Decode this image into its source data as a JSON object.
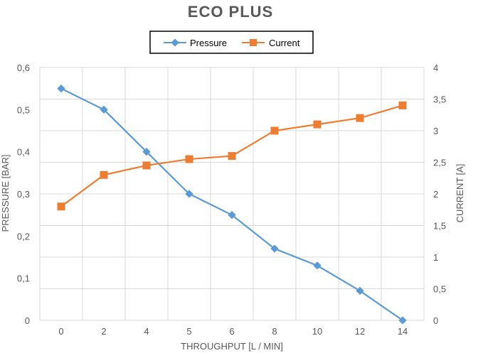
{
  "chart_data": {
    "type": "line",
    "title": "ECO PLUS",
    "xlabel": "THROUGHPUT [L / MIN]",
    "ylabel_left": "PRESSURE [BAR]",
    "ylabel_right": "CURRENT [A]",
    "categories": [
      "0",
      "2",
      "4",
      "5",
      "6",
      "8",
      "10",
      "12",
      "14"
    ],
    "y_left": {
      "min": 0,
      "max": 0.6,
      "step": 0.1,
      "tick_labels": [
        "0",
        "0,1",
        "0,2",
        "0,3",
        "0,4",
        "0,5",
        "0,6"
      ]
    },
    "y_right": {
      "min": 0,
      "max": 4,
      "step": 0.5,
      "tick_labels": [
        "0",
        "0,5",
        "1",
        "1,5",
        "2",
        "2,5",
        "3",
        "3,5",
        "4"
      ]
    },
    "grid": true,
    "legend_position": "top-center",
    "series": [
      {
        "name": "Pressure",
        "axis": "left",
        "marker": "diamond",
        "color": "#5B9BD5",
        "values": [
          0.55,
          0.5,
          0.4,
          0.3,
          0.25,
          0.17,
          0.13,
          0.07,
          0.0
        ]
      },
      {
        "name": "Current",
        "axis": "right",
        "marker": "square",
        "color": "#ED7D31",
        "values": [
          1.8,
          2.3,
          2.45,
          2.55,
          2.6,
          3.0,
          3.1,
          3.2,
          3.4
        ]
      }
    ]
  }
}
